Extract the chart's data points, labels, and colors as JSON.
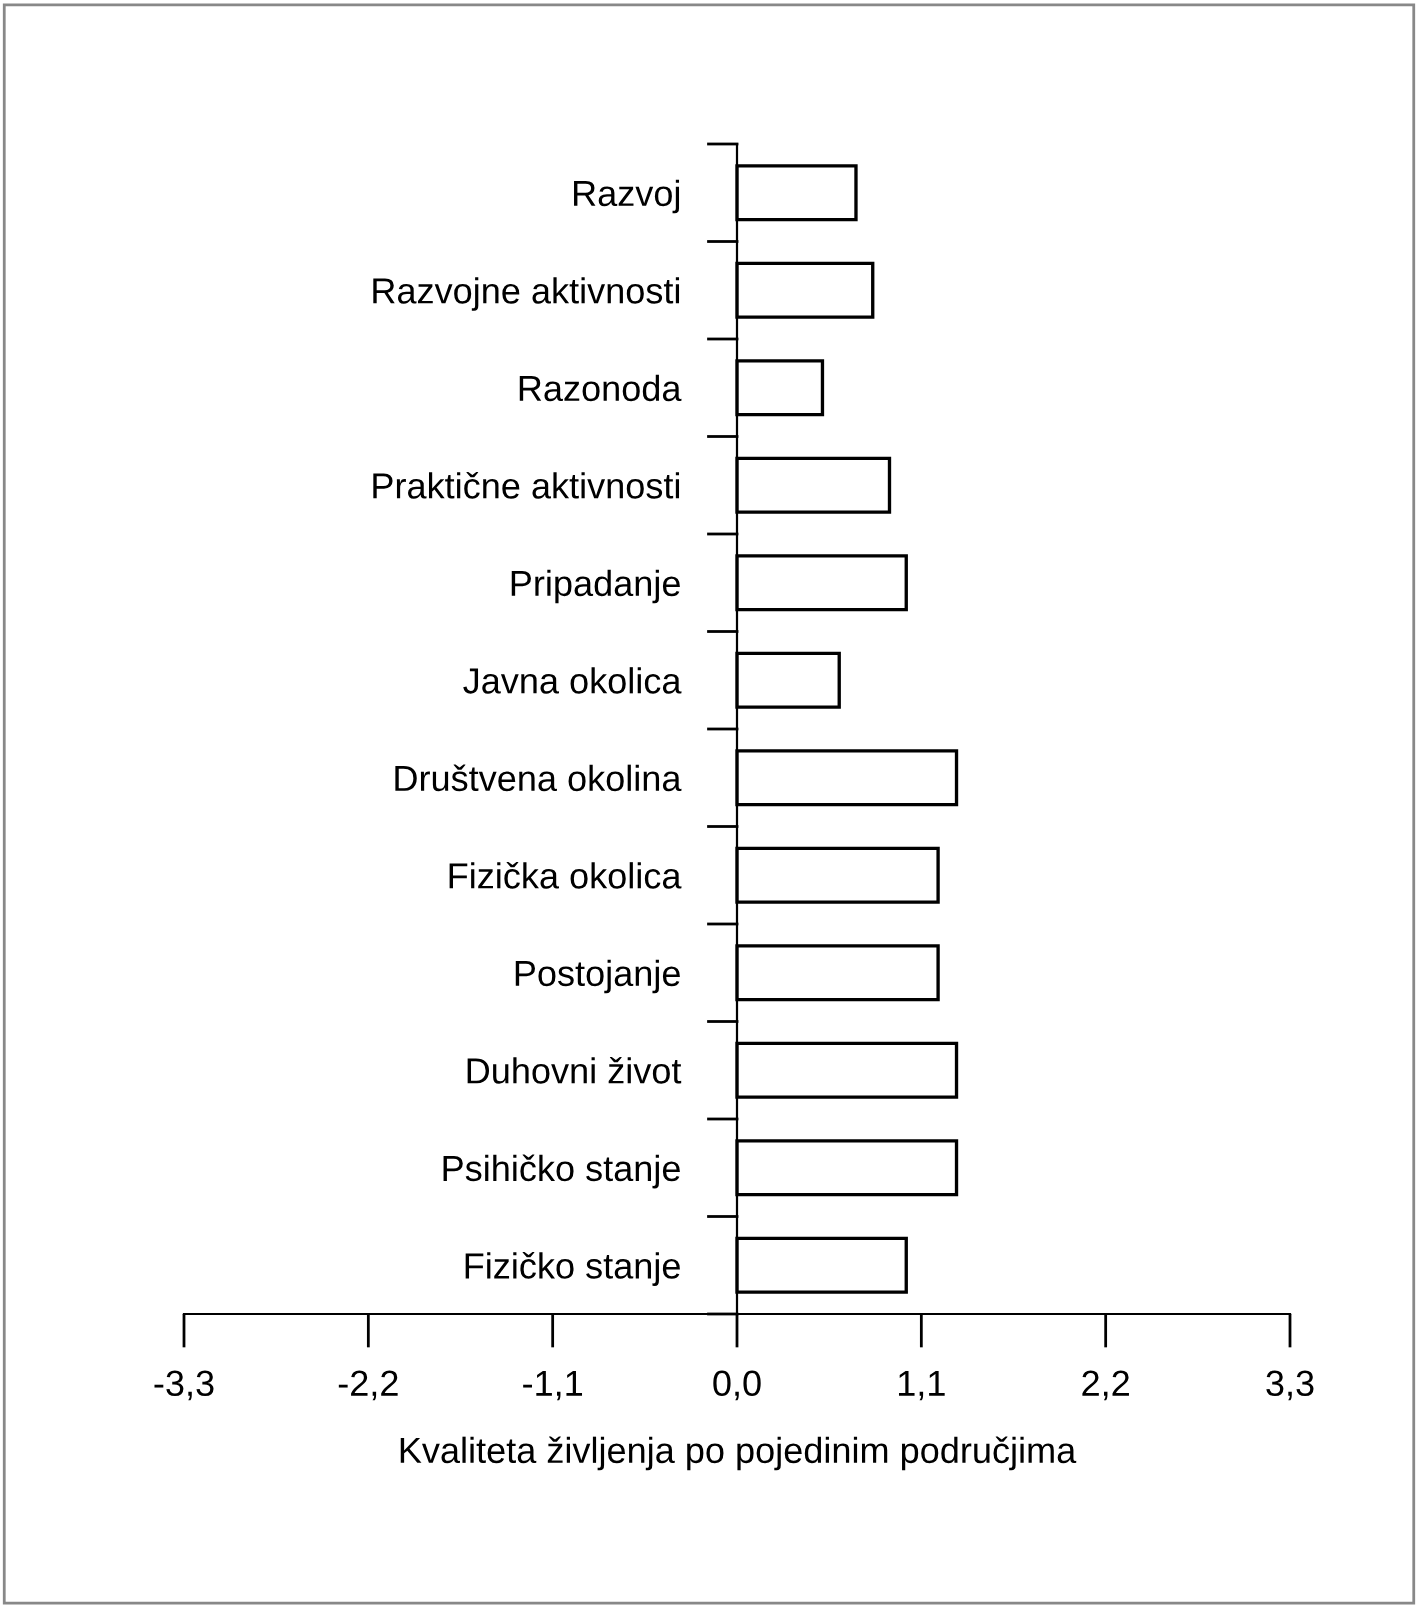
{
  "chart_data": {
    "type": "bar",
    "orientation": "horizontal",
    "xlabel": "Kvaliteta življenja po pojedinim područjima",
    "categories": [
      "Razvoj",
      "Razvojne aktivnosti",
      "Razonoda",
      "Praktične aktivnosti",
      "Pripadanje",
      "Javna okolica",
      "Društvena okolina",
      "Fizička okolica",
      "Postojanje",
      "Duhovni život",
      "Psihičko stanje",
      "Fizičko stanje"
    ],
    "values": [
      0.71,
      0.81,
      0.51,
      0.91,
      1.01,
      0.61,
      1.31,
      1.2,
      1.2,
      1.31,
      1.31,
      1.01
    ],
    "color": "#ffffff",
    "xlim": [
      -3.3,
      3.3
    ],
    "xticks": [
      {
        "value": -3.3,
        "label": "-3,3"
      },
      {
        "value": -2.2,
        "label": "-2,2"
      },
      {
        "value": -1.1,
        "label": "-1,1"
      },
      {
        "value": 0,
        "label": "0,0"
      },
      {
        "value": 1.1,
        "label": "1,1"
      },
      {
        "value": 2.2,
        "label": "2,2"
      },
      {
        "value": 3.3,
        "label": "3,3"
      }
    ],
    "grid": false,
    "legend": false
  }
}
